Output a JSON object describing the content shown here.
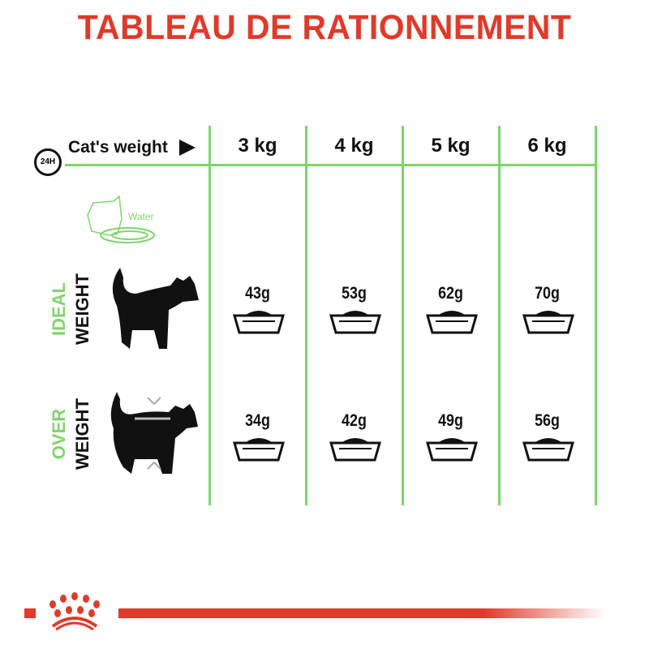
{
  "title": "TABLEAU DE RATIONNEMENT",
  "header": {
    "label": "Cat's weight",
    "clock_label": "24H",
    "weights": [
      "3 kg",
      "4 kg",
      "5 kg",
      "6 kg"
    ]
  },
  "water_label": "Water",
  "rows": [
    {
      "label_top": "IDEAL",
      "label_bottom": "WEIGHT",
      "values": [
        "43g",
        "53g",
        "62g",
        "70g"
      ]
    },
    {
      "label_top": "OVER",
      "label_bottom": "WEIGHT",
      "values": [
        "34g",
        "42g",
        "49g",
        "56g"
      ]
    }
  ],
  "colors": {
    "accent_red": "#e03a2a",
    "grid_green": "#7ed56a"
  },
  "logo": "royal-canin-crown"
}
